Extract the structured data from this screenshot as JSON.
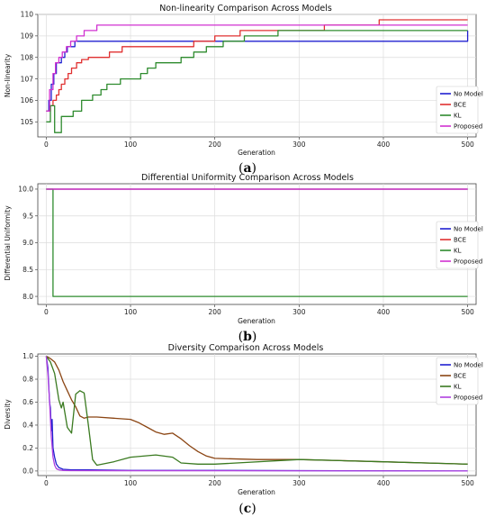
{
  "chart_data": [
    {
      "type": "line",
      "title": "Non-linearity Comparison Across Models",
      "xlabel": "Generation",
      "ylabel": "Non-linearity",
      "caption": "a",
      "xlim": [
        -10,
        510
      ],
      "ylim": [
        104.3,
        110.0
      ],
      "xticks": [
        0,
        100,
        200,
        300,
        400,
        500
      ],
      "yticks": [
        105,
        106,
        107,
        108,
        109,
        110
      ],
      "grid": true,
      "legend": "bottom-right",
      "series": [
        {
          "name": "No Model",
          "color": "#2020d0",
          "step": true,
          "x": [
            0,
            3,
            6,
            9,
            12,
            15,
            18,
            22,
            25,
            30,
            34,
            40,
            45,
            500
          ],
          "y": [
            105.5,
            106.0,
            106.75,
            107.25,
            107.75,
            107.75,
            108.0,
            108.25,
            108.5,
            108.5,
            108.75,
            108.75,
            108.75,
            109.25
          ]
        },
        {
          "name": "BCE",
          "color": "#e03030",
          "step": true,
          "x": [
            0,
            5,
            8,
            12,
            15,
            18,
            22,
            26,
            30,
            36,
            42,
            50,
            60,
            75,
            90,
            105,
            120,
            160,
            175,
            200,
            230,
            330,
            395,
            500
          ],
          "y": [
            105.5,
            105.75,
            106.0,
            106.25,
            106.5,
            106.75,
            107.0,
            107.25,
            107.5,
            107.75,
            107.9,
            108.0,
            108.0,
            108.25,
            108.5,
            108.5,
            108.5,
            108.5,
            108.75,
            109.0,
            109.25,
            109.5,
            109.75,
            109.75
          ]
        },
        {
          "name": "KL",
          "color": "#2e8b2e",
          "step": true,
          "x": [
            0,
            5,
            10,
            18,
            25,
            32,
            42,
            55,
            65,
            72,
            80,
            88,
            100,
            112,
            120,
            130,
            145,
            160,
            175,
            190,
            210,
            235,
            275,
            500
          ],
          "y": [
            105.0,
            105.75,
            104.5,
            105.25,
            105.25,
            105.5,
            106.0,
            106.25,
            106.5,
            106.75,
            106.75,
            107.0,
            107.0,
            107.25,
            107.5,
            107.75,
            107.75,
            108.0,
            108.25,
            108.5,
            108.75,
            109.0,
            109.25,
            109.25
          ]
        },
        {
          "name": "Proposed",
          "color": "#d030d0",
          "step": true,
          "x": [
            0,
            4,
            8,
            11,
            15,
            19,
            24,
            29,
            36,
            45,
            60,
            500
          ],
          "y": [
            105.5,
            106.5,
            107.25,
            107.75,
            108.0,
            108.25,
            108.5,
            108.75,
            109.0,
            109.25,
            109.5,
            109.5
          ]
        }
      ]
    },
    {
      "type": "line",
      "title": "Differential Uniformity Comparison Across Models",
      "xlabel": "Generation",
      "ylabel": "Differential Uniformity",
      "caption": "b",
      "xlim": [
        -10,
        510
      ],
      "ylim": [
        7.85,
        10.1
      ],
      "xticks": [
        0,
        100,
        200,
        300,
        400,
        500
      ],
      "yticks": [
        8.0,
        8.5,
        9.0,
        9.5,
        10.0
      ],
      "ytick_labels": [
        "8.0",
        "8.5",
        "9.0",
        "9.5",
        "10.0"
      ],
      "grid": true,
      "legend": "right",
      "series": [
        {
          "name": "No Model",
          "color": "#2020d0",
          "step": true,
          "x": [
            0,
            500
          ],
          "y": [
            10.0,
            10.0
          ]
        },
        {
          "name": "BCE",
          "color": "#e03030",
          "step": true,
          "x": [
            0,
            500
          ],
          "y": [
            10.0,
            10.0
          ]
        },
        {
          "name": "KL",
          "color": "#2e8b2e",
          "step": true,
          "x": [
            0,
            8,
            500
          ],
          "y": [
            10.0,
            8.0,
            8.0
          ]
        },
        {
          "name": "Proposed",
          "color": "#d030d0",
          "step": true,
          "x": [
            0,
            500
          ],
          "y": [
            10.0,
            10.0
          ]
        }
      ]
    },
    {
      "type": "line",
      "title": "Diversity Comparison Across Models",
      "xlabel": "Generation",
      "ylabel": "Diversity",
      "caption": "c",
      "xlim": [
        -10,
        510
      ],
      "ylim": [
        -0.04,
        1.02
      ],
      "xticks": [
        0,
        100,
        200,
        300,
        400,
        500
      ],
      "yticks": [
        0.0,
        0.2,
        0.4,
        0.6,
        0.8,
        1.0
      ],
      "ytick_labels": [
        "0.0",
        "0.2",
        "0.4",
        "0.6",
        "0.8",
        "1.0"
      ],
      "grid": true,
      "legend": "top-right",
      "series": [
        {
          "name": "No Model",
          "color": "#2020d0",
          "step": false,
          "x": [
            0,
            2,
            4,
            5,
            6,
            7,
            8,
            10,
            12,
            15,
            20,
            30,
            50,
            100,
            200,
            500
          ],
          "y": [
            1.0,
            0.9,
            0.6,
            0.55,
            0.35,
            0.45,
            0.2,
            0.12,
            0.06,
            0.03,
            0.015,
            0.01,
            0.01,
            0.005,
            0.005,
            0.0
          ]
        },
        {
          "name": "BCE",
          "color": "#8b4513",
          "step": false,
          "x": [
            0,
            5,
            10,
            15,
            20,
            25,
            30,
            35,
            40,
            45,
            50,
            60,
            80,
            100,
            110,
            120,
            130,
            140,
            150,
            160,
            170,
            180,
            185,
            190,
            200,
            250,
            300,
            350,
            400,
            450,
            500
          ],
          "y": [
            1.0,
            0.98,
            0.95,
            0.88,
            0.78,
            0.7,
            0.62,
            0.56,
            0.48,
            0.46,
            0.47,
            0.47,
            0.46,
            0.45,
            0.42,
            0.38,
            0.34,
            0.32,
            0.33,
            0.28,
            0.22,
            0.17,
            0.15,
            0.13,
            0.11,
            0.1,
            0.1,
            0.09,
            0.08,
            0.07,
            0.06
          ]
        },
        {
          "name": "KL",
          "color": "#3a7a20",
          "step": false,
          "x": [
            0,
            5,
            10,
            15,
            18,
            20,
            25,
            30,
            35,
            40,
            45,
            50,
            55,
            60,
            80,
            100,
            130,
            150,
            160,
            180,
            200,
            300,
            400,
            500
          ],
          "y": [
            1.0,
            0.95,
            0.85,
            0.62,
            0.55,
            0.6,
            0.38,
            0.33,
            0.67,
            0.7,
            0.68,
            0.4,
            0.1,
            0.05,
            0.08,
            0.12,
            0.14,
            0.12,
            0.07,
            0.06,
            0.06,
            0.1,
            0.08,
            0.06
          ]
        },
        {
          "name": "Proposed",
          "color": "#b040e0",
          "step": false,
          "x": [
            0,
            2,
            4,
            6,
            8,
            10,
            12,
            15,
            20,
            30,
            500
          ],
          "y": [
            1.0,
            0.85,
            0.6,
            0.3,
            0.12,
            0.05,
            0.02,
            0.01,
            0.005,
            0.003,
            0.0
          ]
        }
      ]
    }
  ]
}
